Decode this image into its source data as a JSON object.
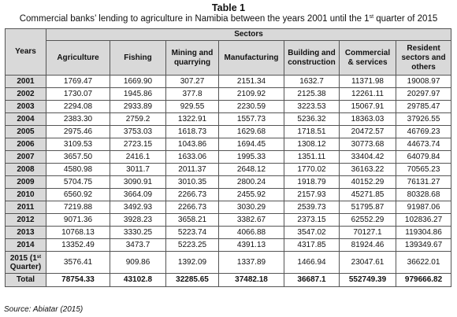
{
  "title": "Table 1",
  "caption": {
    "main": "Commercial banks’ lending to agriculture in Namibia between the years 2001 until the 1",
    "sup": "st",
    "end": " quarter of 2015"
  },
  "table": {
    "years_header": "Years",
    "sectors_header": "Sectors",
    "columns": [
      "Agriculture",
      "Fishing",
      "Mining and quarrying",
      "Manufacturing",
      "Building and construction",
      "Commercial & services",
      "Resident sectors and others"
    ],
    "rows": [
      {
        "year": "2001",
        "values": [
          "1769.47",
          "1669.90",
          "307.27",
          "2151.34",
          "1632.7",
          "11371.98",
          "19008.97"
        ]
      },
      {
        "year": "2002",
        "values": [
          "1730.07",
          "1945.86",
          "377.8",
          "2109.92",
          "2125.38",
          "12261.11",
          "20297.97"
        ]
      },
      {
        "year": "2003",
        "values": [
          "2294.08",
          "2933.89",
          "929.55",
          "2230.59",
          "3223.53",
          "15067.91",
          "29785.47"
        ]
      },
      {
        "year": "2004",
        "values": [
          "2383.30",
          "2759.2",
          "1322.91",
          "1557.73",
          "5236.32",
          "18363.03",
          "37926.55"
        ]
      },
      {
        "year": "2005",
        "values": [
          "2975.46",
          "3753.03",
          "1618.73",
          "1629.68",
          "1718.51",
          "20472.57",
          "46769.23"
        ]
      },
      {
        "year": "2006",
        "values": [
          "3109.53",
          "2723.15",
          "1043.86",
          "1694.45",
          "1308.12",
          "30773.68",
          "44673.74"
        ]
      },
      {
        "year": "2007",
        "values": [
          "3657.50",
          "2416.1",
          "1633.06",
          "1995.33",
          "1351.11",
          "33404.42",
          "64079.84"
        ]
      },
      {
        "year": "2008",
        "values": [
          "4580.98",
          "3011.7",
          "2011.37",
          "2648.12",
          "1770.02",
          "36163.22",
          "70565.23"
        ]
      },
      {
        "year": "2009",
        "values": [
          "5704.75",
          "3090.91",
          "3010.35",
          "2800.24",
          "1918.79",
          "40152.29",
          "76131.27"
        ]
      },
      {
        "year": "2010",
        "values": [
          "6560.92",
          "3664.09",
          "2266.73",
          "2455.92",
          "2157.93",
          "45271.85",
          "80328.68"
        ]
      },
      {
        "year": "2011",
        "values": [
          "7219.88",
          "3492.93",
          "2266.73",
          "3030.29",
          "2539.73",
          "51795.87",
          "91987.06"
        ]
      },
      {
        "year": "2012",
        "values": [
          "9071.36",
          "3928.23",
          "3658.21",
          "3382.67",
          "2373.15",
          "62552.29",
          "102836.27"
        ]
      },
      {
        "year": "2013",
        "values": [
          "10768.13",
          "3330.25",
          "5223.74",
          "4066.88",
          "3547.02",
          "70127.1",
          "119304.86"
        ]
      },
      {
        "year": "2014",
        "values": [
          "13352.49",
          "3473.7",
          "5223.25",
          "4391.13",
          "4317.85",
          "81924.46",
          "139349.67"
        ]
      }
    ],
    "quarter_row": {
      "year_a": "2015 (1",
      "year_sup": "st",
      "year_b": "Quarter)",
      "values": [
        "3576.41",
        "909.86",
        "1392.09",
        "1337.89",
        "1466.94",
        "23047.61",
        "36622.01"
      ]
    },
    "total_row": {
      "label": "Total",
      "values": [
        "78754.33",
        "43102.8",
        "32285.65",
        "37482.18",
        "36687.1",
        "552749.39",
        "979666.82"
      ]
    }
  },
  "source": "Source: Abiatar (2015)"
}
